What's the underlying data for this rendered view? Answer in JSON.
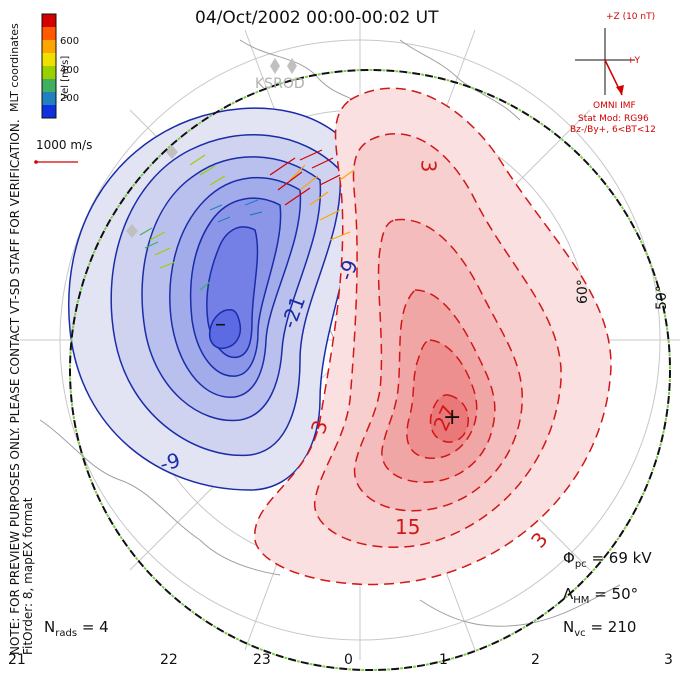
{
  "title": "04/Oct/2002 00:00-00:02 UT",
  "coordinate_label": "MLT coordinates",
  "note_line1": "NOTE: FOR PREVIEW PURPOSES ONLY. PLEASE CONTACT VT-SD STAFF FOR VERIFICATION.",
  "note_line2": "FitOrder: 8, mapEX format",
  "colorbar": {
    "label": "Vel [m/s]",
    "ticks": [
      "600",
      "400",
      "200"
    ],
    "colors": [
      "#d40000",
      "#ff5a00",
      "#ffa500",
      "#f0e000",
      "#9ad000",
      "#40b060",
      "#2080c0",
      "#1030e0"
    ]
  },
  "vector_scale_label": "1000 m/s",
  "station_label": "KSROD",
  "imf": {
    "scale_label": "+Z (10 nT)",
    "y_label": "+Y",
    "caption": "OMNI IMF",
    "model_line1": "Stat Mod: RG96",
    "model_line2": "Bz-/By+, 6<BT<12"
  },
  "latitude_labels": [
    "60°",
    "50°"
  ],
  "contour_labels": {
    "negative": [
      "-21",
      "-9",
      "-9"
    ],
    "positive": [
      "3",
      "27",
      "15",
      "3",
      "3"
    ]
  },
  "extrema": {
    "min_symbol": "–",
    "max_symbol": "+"
  },
  "stats": {
    "phi_pc": "= 69 kV",
    "lambda_hm": "= 50°",
    "n_vc": "= 210",
    "n_rads": "= 4"
  },
  "mlt_ticks": [
    "21",
    "22",
    "23",
    "0",
    "1",
    "2",
    "3"
  ]
}
